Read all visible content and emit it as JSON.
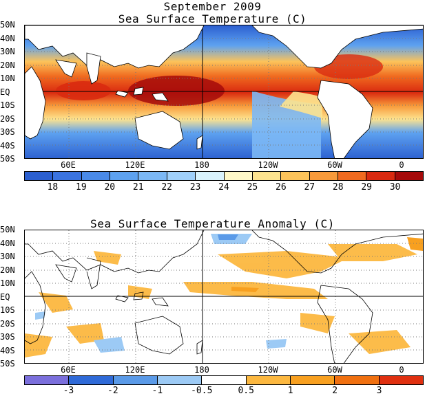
{
  "top": {
    "title_line1": "September 2009",
    "title_line2": "Sea Surface Temperature (C)",
    "lat_labels": [
      "50N",
      "40N",
      "30N",
      "20N",
      "10N",
      "EQ",
      "10S",
      "20S",
      "30S",
      "40S",
      "50S"
    ],
    "lon_labels": [
      "60E",
      "120E",
      "180",
      "120W",
      "60W",
      "0"
    ],
    "colorbar": {
      "labels": [
        "18",
        "19",
        "20",
        "21",
        "22",
        "23",
        "24",
        "25",
        "26",
        "27",
        "28",
        "29",
        "30"
      ],
      "colors": [
        "#2b5fd0",
        "#3a73e0",
        "#4a8ae8",
        "#5ea2f0",
        "#7cb8f5",
        "#a0d0fa",
        "#d9f2fc",
        "#fff8c8",
        "#fde38f",
        "#fcc35a",
        "#f89a3a",
        "#f06a1f",
        "#d92a10",
        "#a50a0a"
      ]
    }
  },
  "bottom": {
    "title": "Sea Surface Temperature Anomaly (C)",
    "lat_labels": [
      "50N",
      "40N",
      "30N",
      "20N",
      "10N",
      "EQ",
      "10S",
      "20S",
      "30S",
      "40S",
      "50S"
    ],
    "lon_labels": [
      "60E",
      "120E",
      "180",
      "120W",
      "60W",
      "0"
    ],
    "colorbar": {
      "labels": [
        "-3",
        "-2",
        "-1",
        "-0.5",
        "0.5",
        "1",
        "2",
        "3"
      ],
      "colors": [
        "#7b6fdc",
        "#2f6ad8",
        "#5a9ae8",
        "#9ccaf5",
        "#ffffff",
        "#fcb840",
        "#f8a020",
        "#f07010",
        "#e03010"
      ]
    }
  }
}
